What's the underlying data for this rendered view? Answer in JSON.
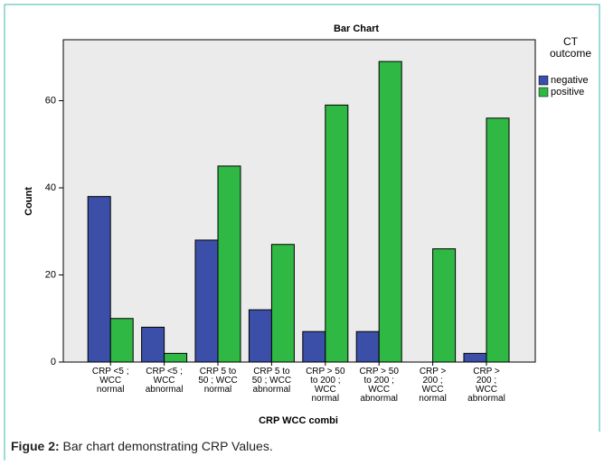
{
  "chart_data": {
    "type": "bar",
    "title": "Bar Chart",
    "x_label": "CRP WCC combi",
    "y_label": "Count",
    "categories": [
      "CRP <5 ;\nWCC\nnormal",
      "CRP <5 ;\nWCC\nabnormal",
      "CRP 5 to\n50 ; WCC\nnormal",
      "CRP 5 to\n50 ; WCC\nabnormal",
      "CRP > 50\nto 200 ;\nWCC\nnormal",
      "CRP > 50\nto 200 ;\nWCC\nabnormal",
      "CRP >\n200 ;\nWCC\nnormal",
      "CRP >\n200 ;\nWCC\nabnormal"
    ],
    "series": [
      {
        "name": "negative",
        "color": "#3b4fa8",
        "values": [
          38,
          8,
          28,
          12,
          7,
          7,
          0,
          2
        ]
      },
      {
        "name": "positive",
        "color": "#2fb843",
        "values": [
          10,
          2,
          45,
          27,
          59,
          69,
          26,
          56
        ]
      }
    ],
    "legend_title": "CT\noutcome",
    "ylim": [
      0,
      74
    ],
    "yticks": [
      0,
      20,
      40,
      60
    ],
    "grid": false
  },
  "caption": {
    "label": "Figue 2:",
    "text": " Bar chart demonstrating CRP Values."
  }
}
